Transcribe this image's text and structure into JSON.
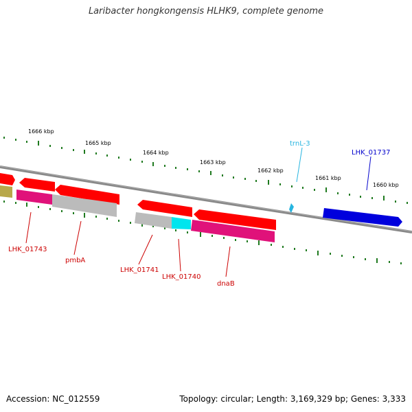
{
  "title": "Laribacter hongkongensis HLHK9, complete genome",
  "footer": {
    "accession": "Accession: NC_012559",
    "summary": "Topology: circular; Length: 3,169,329 bp; Genes: 3,333"
  },
  "scale_labels": [
    "1666 kbp",
    "1665 kbp",
    "1664 kbp",
    "1663 kbp",
    "1662 kbp",
    "1661 kbp",
    "1660 kbp"
  ],
  "colors": {
    "backbone": "#888888",
    "tick": "#1f7a1f",
    "cds_red": "#ff0000",
    "cds_pink": "#e0127a",
    "cds_gray": "#bbbbbb",
    "cds_cyan": "#00e5ee",
    "cds_blue": "#0000dd",
    "cds_olive": "#b8a84a",
    "trna": "#27b5e0",
    "gene_label": "#cc0000",
    "trna_label": "#27b5e0",
    "blue_label": "#0000cc"
  },
  "gene_labels": {
    "lhk_01743": "LHK_01743",
    "pmba": "pmbA",
    "lhk_01741": "LHK_01741",
    "lhk_01740": "LHK_01740",
    "dnab": "dnaB",
    "trnl3": "trnL-3",
    "lhk_01737": "LHK_01737"
  }
}
